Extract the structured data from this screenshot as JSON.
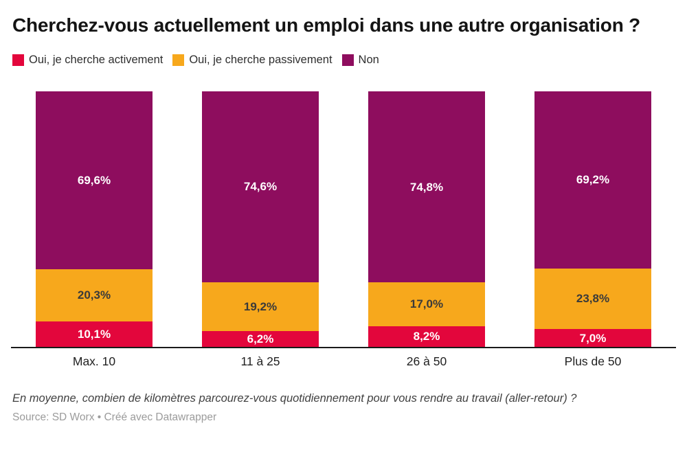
{
  "title": "Cherchez-vous actuellement un emploi dans une autre organisation ?",
  "footer": {
    "note": "En moyenne, combien de kilomètres parcourez-vous quotidiennement pour vous rendre au travail (aller-retour) ?",
    "source": "Source: SD Worx • Créé avec Datawrapper"
  },
  "colors": {
    "active": "#e3063c",
    "passive": "#f7a81c",
    "non": "#8e0d5e",
    "axis": "#1a1a1a"
  },
  "chart_data": {
    "type": "bar",
    "stacked": true,
    "stack_total": 100,
    "title": "Cherchez-vous actuellement un emploi dans une autre organisation ?",
    "xlabel": "",
    "ylabel": "",
    "ylim": [
      0,
      100
    ],
    "grid": false,
    "legend_position": "top",
    "categories": [
      "Max. 10",
      "11 à 25",
      "26 à 50",
      "Plus de 50"
    ],
    "series": [
      {
        "name": "Oui, je cherche activement",
        "color": "#e3063c",
        "label_color": "#ffffff",
        "values": [
          10.1,
          6.2,
          8.2,
          7.0
        ],
        "labels": [
          "10,1%",
          "6,2%",
          "8,2%",
          "7,0%"
        ]
      },
      {
        "name": "Oui, je cherche passivement",
        "color": "#f7a81c",
        "label_color": "#3a3a3a",
        "values": [
          20.3,
          19.2,
          17.0,
          23.8
        ],
        "labels": [
          "20,3%",
          "19,2%",
          "17,0%",
          "23,8%"
        ]
      },
      {
        "name": "Non",
        "color": "#8e0d5e",
        "label_color": "#ffffff",
        "values": [
          69.6,
          74.6,
          74.8,
          69.2
        ],
        "labels": [
          "69,6%",
          "74,6%",
          "74,8%",
          "69,2%"
        ]
      }
    ]
  }
}
